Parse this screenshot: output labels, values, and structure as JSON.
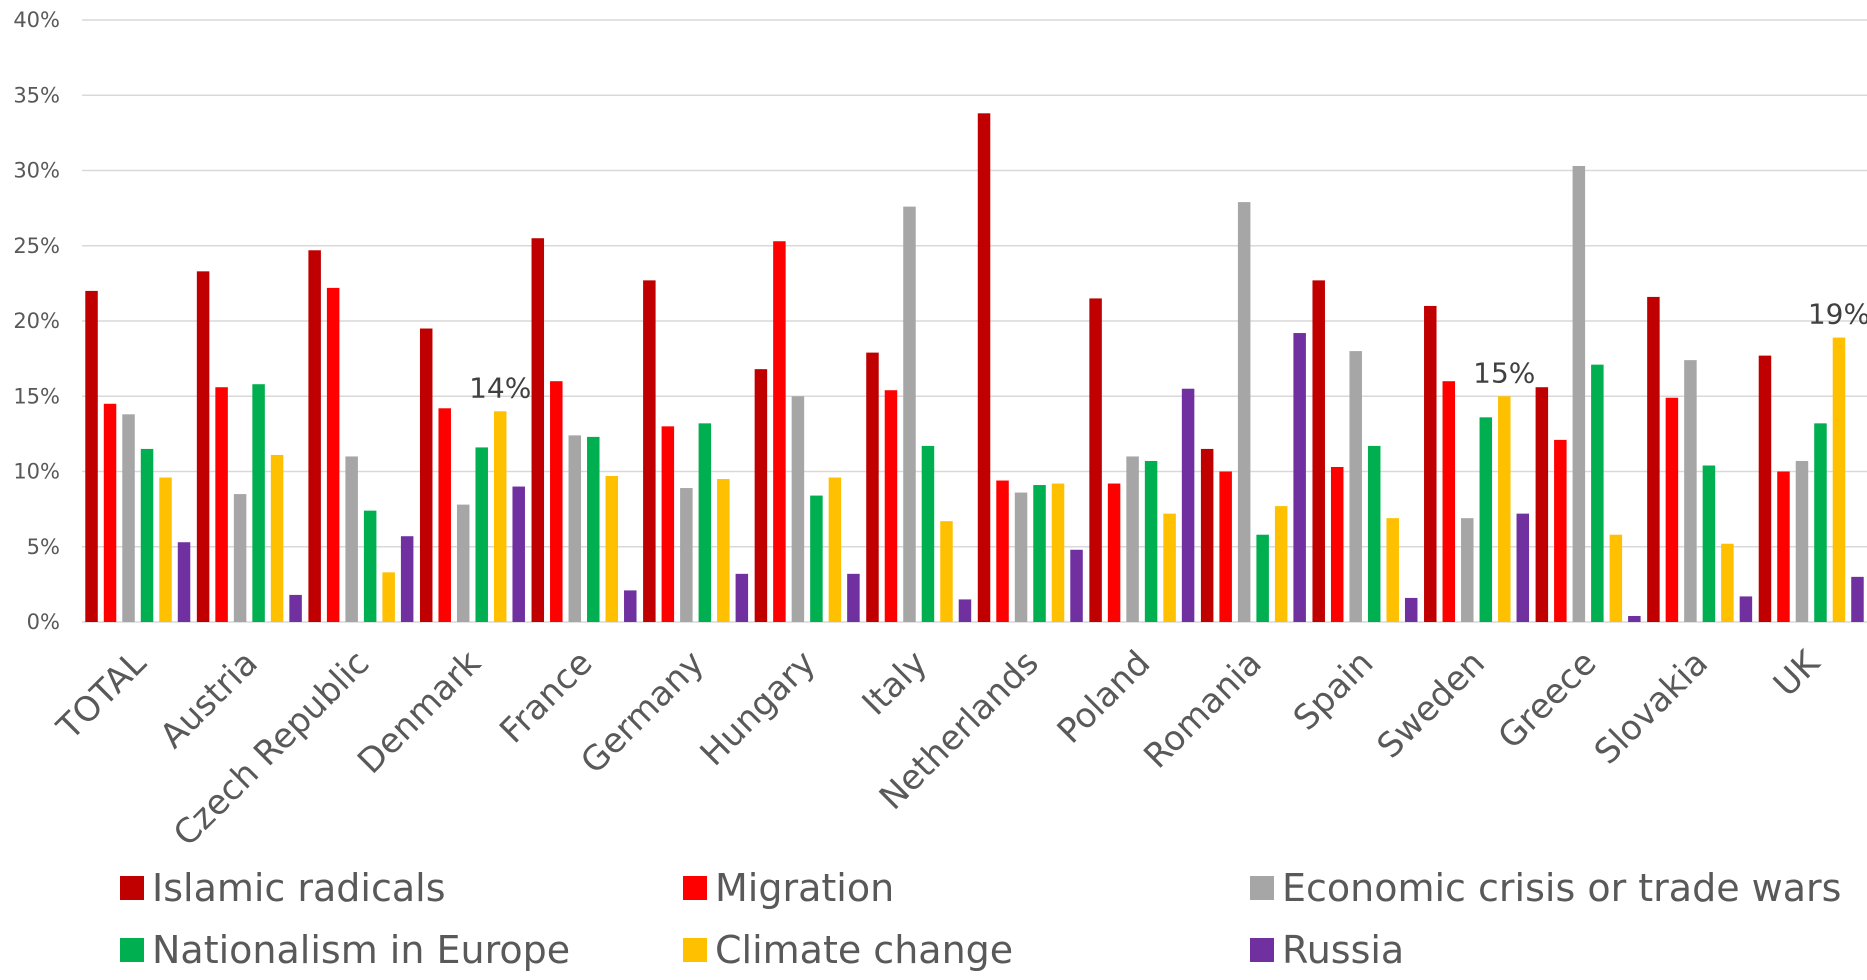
{
  "chart_data": {
    "type": "bar",
    "title": "",
    "xlabel": "",
    "ylabel": "",
    "ylim": [
      0,
      40
    ],
    "yticks": [
      "0%",
      "5%",
      "10%",
      "15%",
      "20%",
      "25%",
      "30%",
      "35%",
      "40%"
    ],
    "grid": true,
    "legend_position": "bottom",
    "categories": [
      "TOTAL",
      "Austria",
      "Czech Republic",
      "Denmark",
      "France",
      "Germany",
      "Hungary",
      "Italy",
      "Netherlands",
      "Poland",
      "Romania",
      "Spain",
      "Sweden",
      "Greece",
      "Slovakia",
      "UK"
    ],
    "series": [
      {
        "name": "Islamic radicals",
        "color": "#C00000",
        "values": [
          22.0,
          23.3,
          24.7,
          19.5,
          25.5,
          22.7,
          16.8,
          17.9,
          33.8,
          21.5,
          11.5,
          22.7,
          21.0,
          15.6,
          21.6,
          17.7
        ]
      },
      {
        "name": "Migration",
        "color": "#FF0000",
        "values": [
          14.5,
          15.6,
          22.2,
          14.2,
          16.0,
          13.0,
          25.3,
          15.4,
          9.4,
          9.2,
          10.0,
          10.3,
          16.0,
          12.1,
          14.9,
          10.0
        ]
      },
      {
        "name": "Economic crisis or trade wars",
        "color": "#A6A6A6",
        "values": [
          13.8,
          8.5,
          11.0,
          7.8,
          12.4,
          8.9,
          15.0,
          27.6,
          8.6,
          11.0,
          27.9,
          18.0,
          6.9,
          30.3,
          17.4,
          10.7
        ]
      },
      {
        "name": "Nationalism in Europe",
        "color": "#00B050",
        "values": [
          11.5,
          15.8,
          7.4,
          11.6,
          12.3,
          13.2,
          8.4,
          11.7,
          9.1,
          10.7,
          5.8,
          11.7,
          13.6,
          17.1,
          10.4,
          13.2
        ]
      },
      {
        "name": "Climate change",
        "color": "#FFC000",
        "values": [
          9.6,
          11.1,
          3.3,
          14.0,
          9.7,
          9.5,
          9.6,
          6.7,
          9.2,
          7.2,
          7.7,
          6.9,
          15.0,
          5.8,
          5.2,
          18.9
        ]
      },
      {
        "name": "Russia",
        "color": "#7030A0",
        "values": [
          5.3,
          1.8,
          5.7,
          9.0,
          2.1,
          3.2,
          3.2,
          1.5,
          4.8,
          15.5,
          19.2,
          1.6,
          7.2,
          0.4,
          1.7,
          3.0
        ]
      }
    ],
    "annotations": [
      {
        "category": "Denmark",
        "series": "Climate change",
        "text": "14%"
      },
      {
        "category": "Sweden",
        "series": "Climate change",
        "text": "15%"
      },
      {
        "category": "UK",
        "series": "Climate change",
        "text": "19%"
      }
    ]
  }
}
